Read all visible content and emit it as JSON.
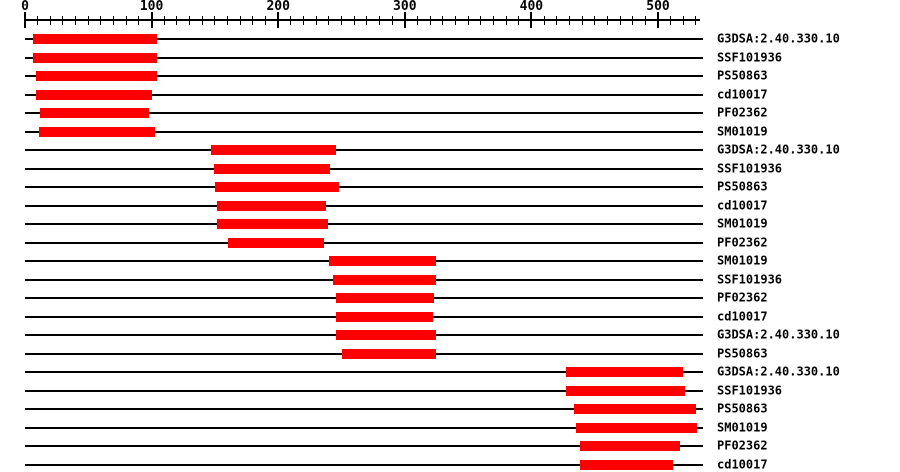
{
  "chart_data": {
    "type": "bar",
    "subtype": "horizontal-interval-domain-plot",
    "title": "",
    "xlabel": "",
    "ylabel": "",
    "legend": "none",
    "grid": false,
    "bar_color": "#ff0000",
    "line_color": "#000000",
    "background_color": "#ffffff",
    "axis": {
      "min": 0,
      "max": 530,
      "major_tick_step": 100,
      "minor_tick_step": 10,
      "major_tick_labels": [
        "0",
        "100",
        "200",
        "300",
        "400",
        "500"
      ]
    },
    "rows": [
      {
        "label": "G3DSA:2.40.330.10",
        "start": 6,
        "end": 104
      },
      {
        "label": "SSF101936",
        "start": 6,
        "end": 104
      },
      {
        "label": "PS50863",
        "start": 9,
        "end": 104
      },
      {
        "label": "cd10017",
        "start": 9,
        "end": 100
      },
      {
        "label": "PF02362",
        "start": 12,
        "end": 98
      },
      {
        "label": "SM01019",
        "start": 11,
        "end": 103
      },
      {
        "label": "G3DSA:2.40.330.10",
        "start": 147,
        "end": 246
      },
      {
        "label": "SSF101936",
        "start": 149,
        "end": 241
      },
      {
        "label": "PS50863",
        "start": 150,
        "end": 248
      },
      {
        "label": "cd10017",
        "start": 152,
        "end": 238
      },
      {
        "label": "SM01019",
        "start": 152,
        "end": 239
      },
      {
        "label": "PF02362",
        "start": 160,
        "end": 236
      },
      {
        "label": "SM01019",
        "start": 240,
        "end": 325
      },
      {
        "label": "SSF101936",
        "start": 243,
        "end": 325
      },
      {
        "label": "PF02362",
        "start": 246,
        "end": 323
      },
      {
        "label": "cd10017",
        "start": 246,
        "end": 322
      },
      {
        "label": "G3DSA:2.40.330.10",
        "start": 246,
        "end": 325
      },
      {
        "label": "PS50863",
        "start": 250,
        "end": 325
      },
      {
        "label": "G3DSA:2.40.330.10",
        "start": 427,
        "end": 520
      },
      {
        "label": "SSF101936",
        "start": 427,
        "end": 521
      },
      {
        "label": "PS50863",
        "start": 434,
        "end": 530
      },
      {
        "label": "SM01019",
        "start": 435,
        "end": 531
      },
      {
        "label": "PF02362",
        "start": 438,
        "end": 517
      },
      {
        "label": "cd10017",
        "start": 438,
        "end": 512
      }
    ]
  }
}
